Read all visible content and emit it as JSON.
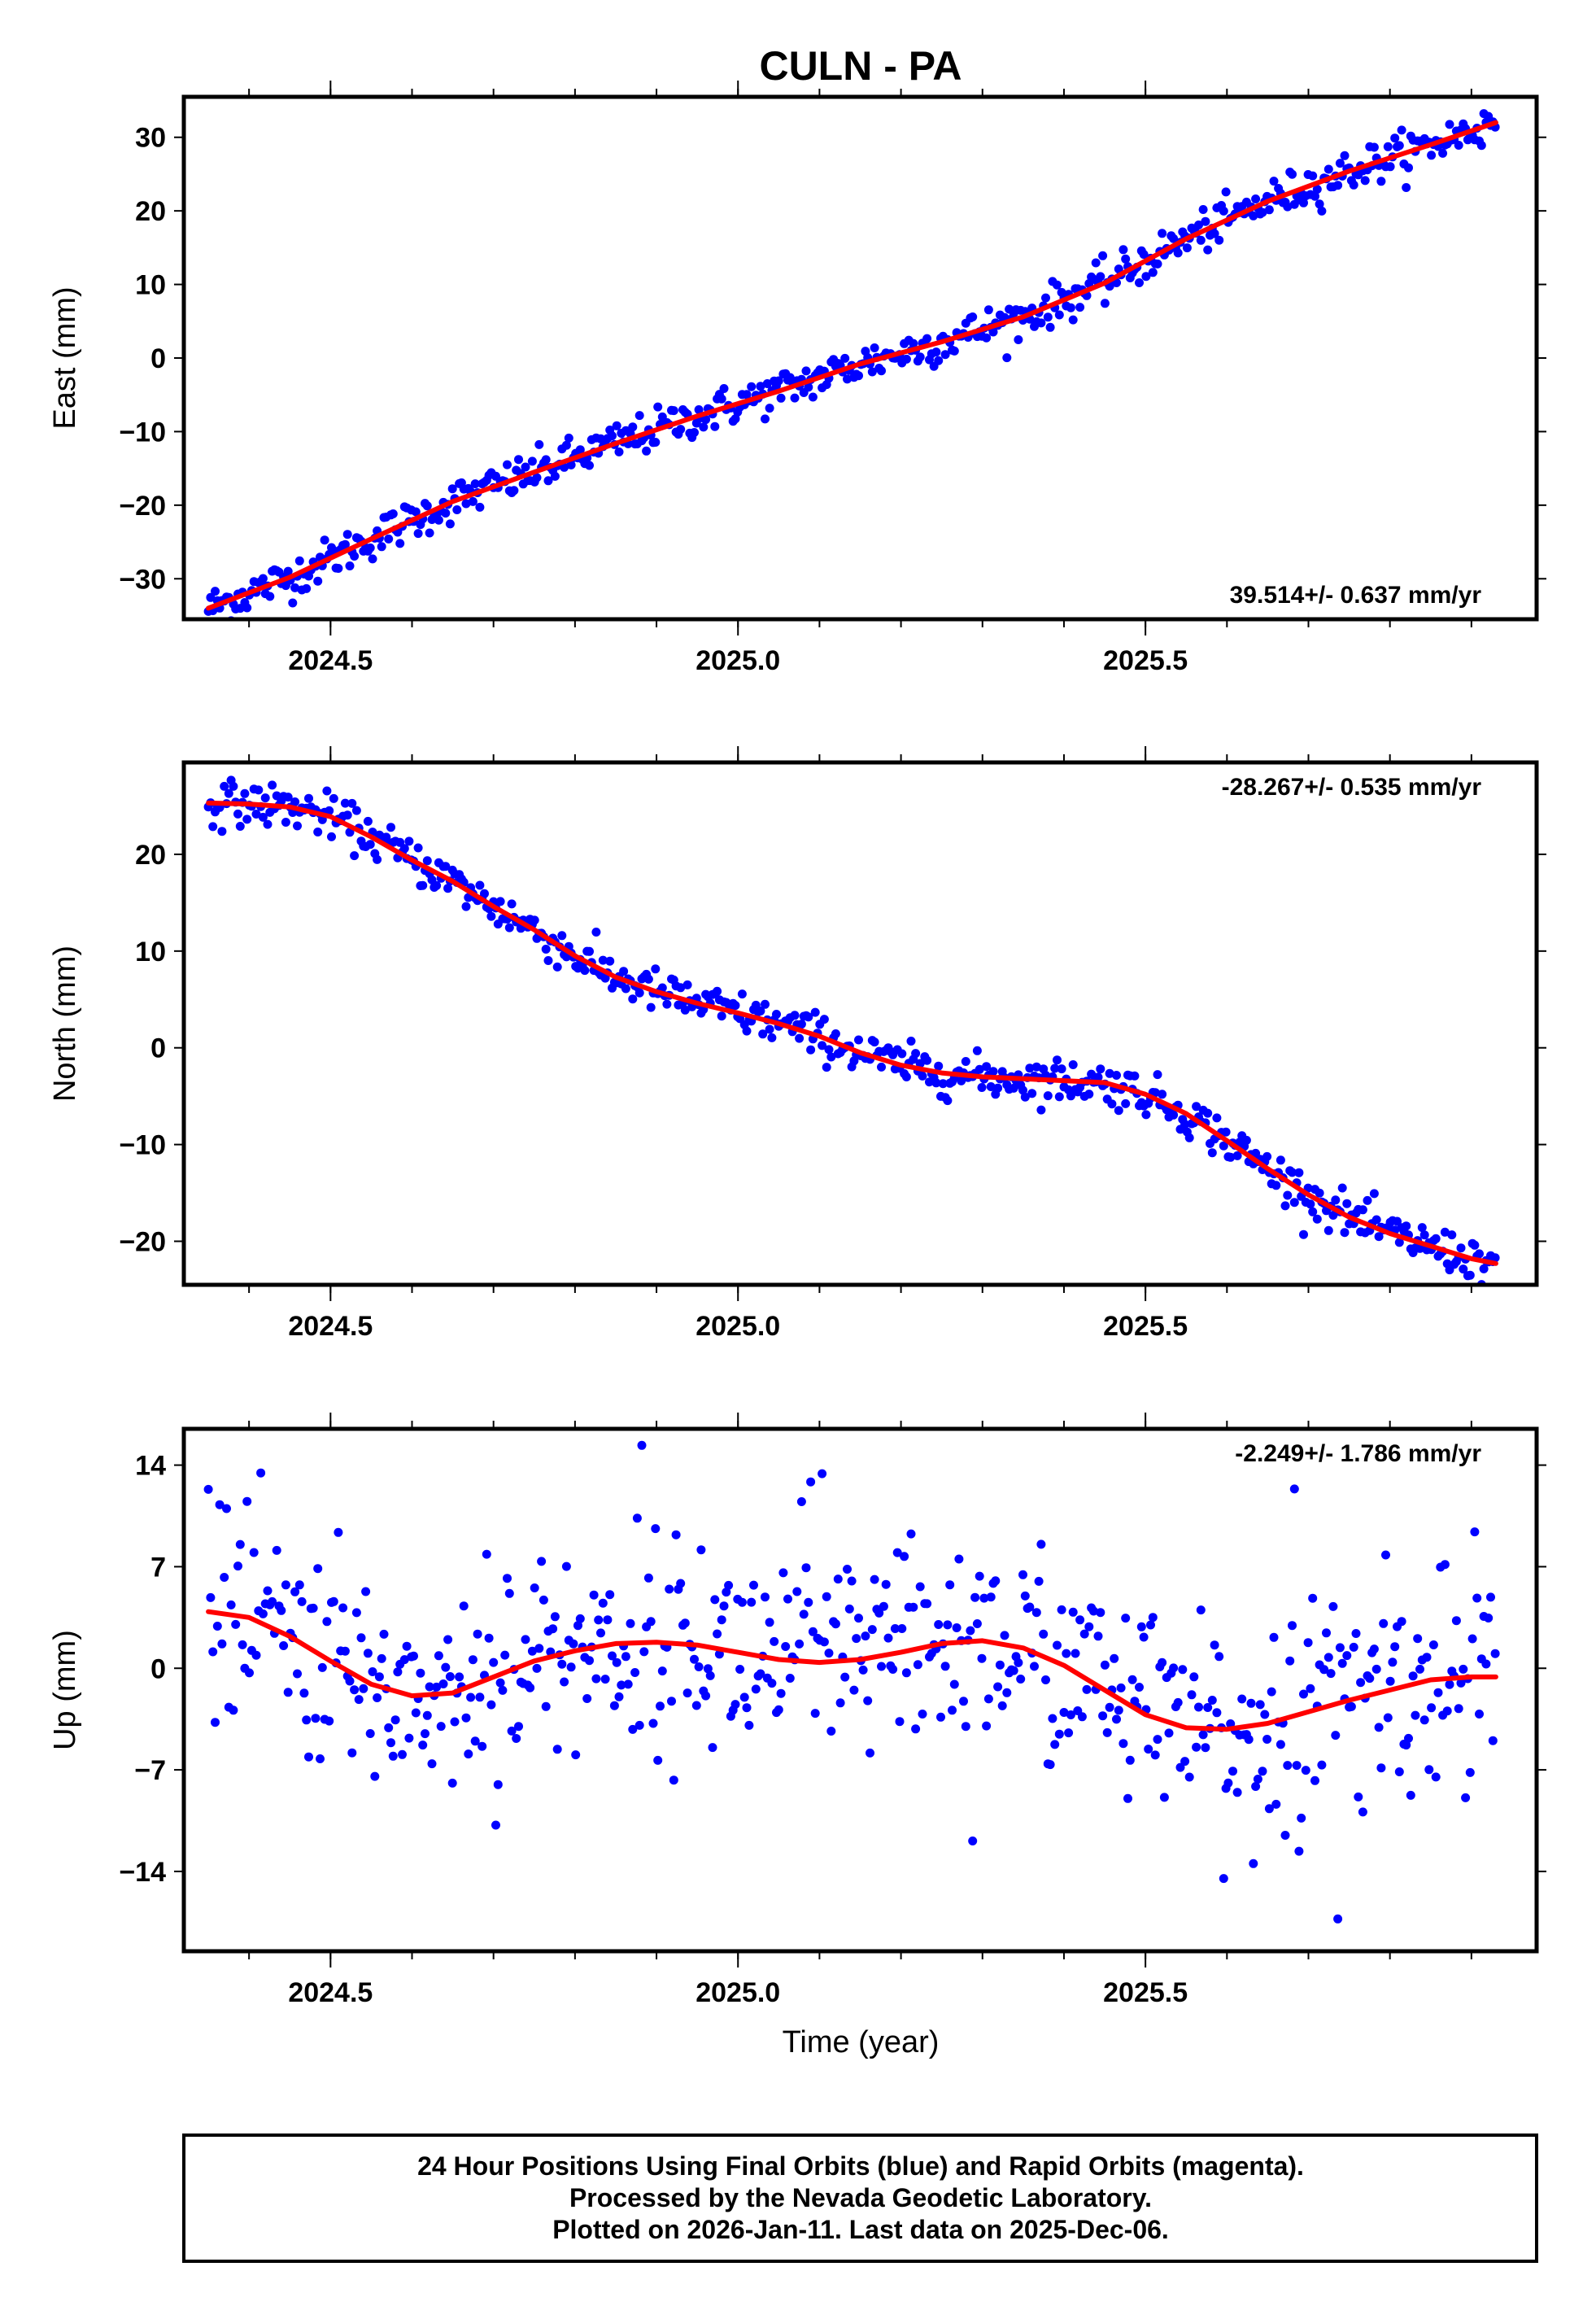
{
  "title": "CULN - PA",
  "xlabel": "Time (year)",
  "footer": [
    "24 Hour Positions Using Final Orbits (blue) and Rapid Orbits (magenta).",
    "Processed by the Nevada Geodetic Laboratory.",
    "Plotted on 2026-Jan-11. Last data on 2025-Dec-06."
  ],
  "colors": {
    "points": "#0000ff",
    "fit": "#ff0000",
    "frame": "#000000"
  },
  "chart_data": [
    {
      "type": "scatter",
      "name": "east",
      "ylabel": "East (mm)",
      "rate": "39.514+/- 0.637 mm/yr",
      "rate_position": "bottom-right",
      "xlim": [
        2024.32,
        2025.98
      ],
      "ylim": [
        -35.5,
        35.5
      ],
      "xticks": [
        2024.5,
        2025.0,
        2025.5
      ],
      "xticklabels": [
        "2024.5",
        "2025.0",
        "2025.5"
      ],
      "xminor_step": 0.1,
      "yticks": [
        -30,
        -20,
        -10,
        0,
        10,
        20,
        30
      ],
      "yticklabels": [
        "−30",
        "−20",
        "−10",
        "0",
        "10",
        "20",
        "30"
      ],
      "series": [
        {
          "name": "fit",
          "x": [
            2024.35,
            2024.45,
            2024.55,
            2024.65,
            2024.75,
            2024.85,
            2024.95,
            2025.05,
            2025.15,
            2025.25,
            2025.35,
            2025.45,
            2025.55,
            2025.65,
            2025.75,
            2025.85,
            2025.93
          ],
          "y": [
            -34,
            -29.8,
            -24.6,
            -19.5,
            -15.5,
            -11.6,
            -7.9,
            -4.5,
            -0.8,
            2.2,
            5.6,
            10.2,
            16.2,
            21.3,
            25.4,
            29.0,
            32.0
          ]
        },
        {
          "name": "final_orbits",
          "noise": 1.4,
          "step": 0.0028,
          "x_start": 2024.35,
          "x_end": 2025.93
        }
      ]
    },
    {
      "type": "scatter",
      "name": "north",
      "ylabel": "North (mm)",
      "rate": "-28.267+/- 0.535 mm/yr",
      "rate_position": "top-right",
      "xlim": [
        2024.32,
        2025.98
      ],
      "ylim": [
        -24.5,
        29.5
      ],
      "xticks": [
        2024.5,
        2025.0,
        2025.5
      ],
      "xticklabels": [
        "2024.5",
        "2025.0",
        "2025.5"
      ],
      "xminor_step": 0.1,
      "yticks": [
        -20,
        -10,
        0,
        10,
        20
      ],
      "yticklabels": [
        "−20",
        "−10",
        "0",
        "10",
        "20"
      ],
      "series": [
        {
          "name": "fit",
          "x": [
            2024.35,
            2024.4,
            2024.45,
            2024.5,
            2024.55,
            2024.6,
            2024.65,
            2024.7,
            2024.75,
            2024.8,
            2024.85,
            2024.9,
            2024.95,
            2025.0,
            2025.05,
            2025.1,
            2025.15,
            2025.2,
            2025.25,
            2025.3,
            2025.35,
            2025.4,
            2025.45,
            2025.5,
            2025.55,
            2025.6,
            2025.65,
            2025.7,
            2025.75,
            2025.8,
            2025.85,
            2025.9,
            2025.93
          ],
          "y": [
            25.3,
            25.2,
            24.9,
            23.9,
            21.8,
            19.4,
            17.2,
            14.6,
            12.2,
            9.5,
            7.3,
            5.8,
            4.6,
            3.6,
            2.5,
            1.2,
            -0.5,
            -1.8,
            -2.6,
            -3.0,
            -3.2,
            -3.4,
            -3.6,
            -4.8,
            -6.8,
            -9.6,
            -12.5,
            -15.2,
            -17.5,
            -19.2,
            -20.5,
            -21.8,
            -22.3
          ]
        },
        {
          "name": "final_orbits",
          "noise": 1.1,
          "step": 0.0028,
          "x_start": 2024.35,
          "x_end": 2025.93
        }
      ]
    },
    {
      "type": "scatter",
      "name": "up",
      "ylabel": "Up (mm)",
      "rate": "-2.249+/- 1.786 mm/yr",
      "rate_position": "top-right",
      "xlim": [
        2024.32,
        2025.98
      ],
      "ylim": [
        -19.5,
        16.5
      ],
      "xticks": [
        2024.5,
        2025.0,
        2025.5
      ],
      "xticklabels": [
        "2024.5",
        "2025.0",
        "2025.5"
      ],
      "xminor_step": 0.1,
      "yticks": [
        -14,
        -7,
        0,
        7,
        14
      ],
      "yticklabels": [
        "−14",
        "−7",
        "0",
        "7",
        "14"
      ],
      "series": [
        {
          "name": "fit",
          "x": [
            2024.35,
            2024.4,
            2024.45,
            2024.5,
            2024.55,
            2024.6,
            2024.65,
            2024.7,
            2024.75,
            2024.8,
            2024.85,
            2024.9,
            2024.95,
            2025.0,
            2025.05,
            2025.1,
            2025.15,
            2025.2,
            2025.25,
            2025.3,
            2025.35,
            2025.4,
            2025.45,
            2025.5,
            2025.55,
            2025.6,
            2025.65,
            2025.7,
            2025.75,
            2025.8,
            2025.85,
            2025.9,
            2025.93
          ],
          "y": [
            3.9,
            3.5,
            2.2,
            0.5,
            -1.1,
            -1.9,
            -1.7,
            -0.6,
            0.5,
            1.2,
            1.7,
            1.8,
            1.6,
            1.1,
            0.6,
            0.4,
            0.6,
            1.1,
            1.7,
            1.9,
            1.4,
            0.2,
            -1.5,
            -3.2,
            -4.1,
            -4.2,
            -3.8,
            -3.0,
            -2.2,
            -1.5,
            -0.8,
            -0.6,
            -0.6
          ]
        },
        {
          "name": "final_orbits",
          "noise": 3.6,
          "step": 0.0028,
          "x_start": 2024.35,
          "x_end": 2025.93
        }
      ]
    }
  ]
}
